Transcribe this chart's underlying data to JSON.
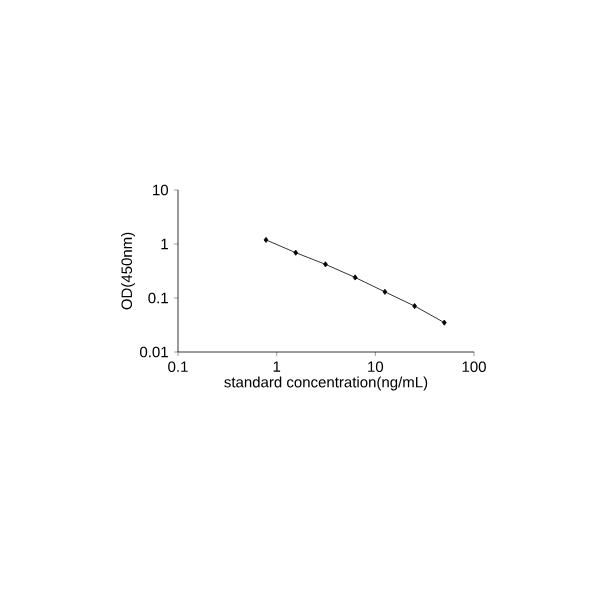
{
  "chart_data": {
    "type": "line",
    "xlabel": "standard concentration(ng/mL)",
    "ylabel": "OD(450nm)",
    "x": [
      0.78,
      1.56,
      3.125,
      6.25,
      12.5,
      25,
      50
    ],
    "series": [
      {
        "color": "#000000",
        "values": [
          1.19,
          0.69,
          0.42,
          0.24,
          0.13,
          0.071,
          0.035
        ]
      }
    ],
    "log": "xy",
    "xlim": [
      0.1,
      100
    ],
    "ylim": [
      0.01,
      10
    ],
    "xticks": [
      0.1,
      1,
      10,
      100
    ],
    "yticks": [
      0.01,
      0.1,
      1,
      10
    ],
    "grid": false,
    "marker": "diamond",
    "line_style": "solid"
  }
}
